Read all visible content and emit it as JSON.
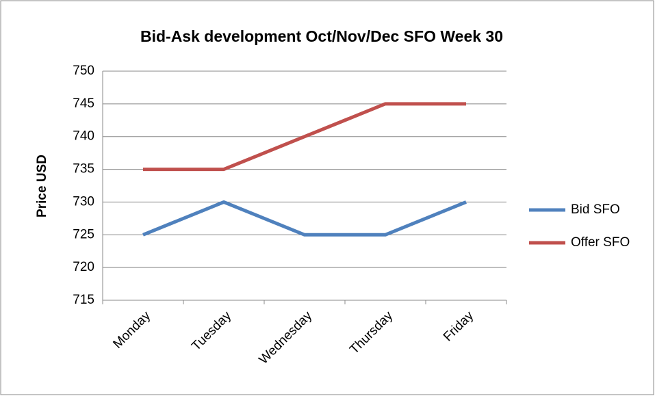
{
  "chart_data": {
    "type": "line",
    "title": "Bid-Ask development Oct/Nov/Dec SFO Week 30",
    "y_label": "Price USD",
    "categories": [
      "Monday",
      "Tuesday",
      "Wednesday",
      "Thursday",
      "Friday"
    ],
    "series": [
      {
        "name": "Bid SFO",
        "color": "#4f81bd",
        "values": [
          725,
          730,
          725,
          725,
          730
        ]
      },
      {
        "name": "Offer SFO",
        "color": "#c0504d",
        "values": [
          735,
          735,
          740,
          745,
          745
        ]
      }
    ],
    "ylim": [
      715,
      750
    ],
    "yticks": [
      715,
      720,
      725,
      730,
      735,
      740,
      745,
      750
    ],
    "grid": true,
    "legend": "right"
  }
}
